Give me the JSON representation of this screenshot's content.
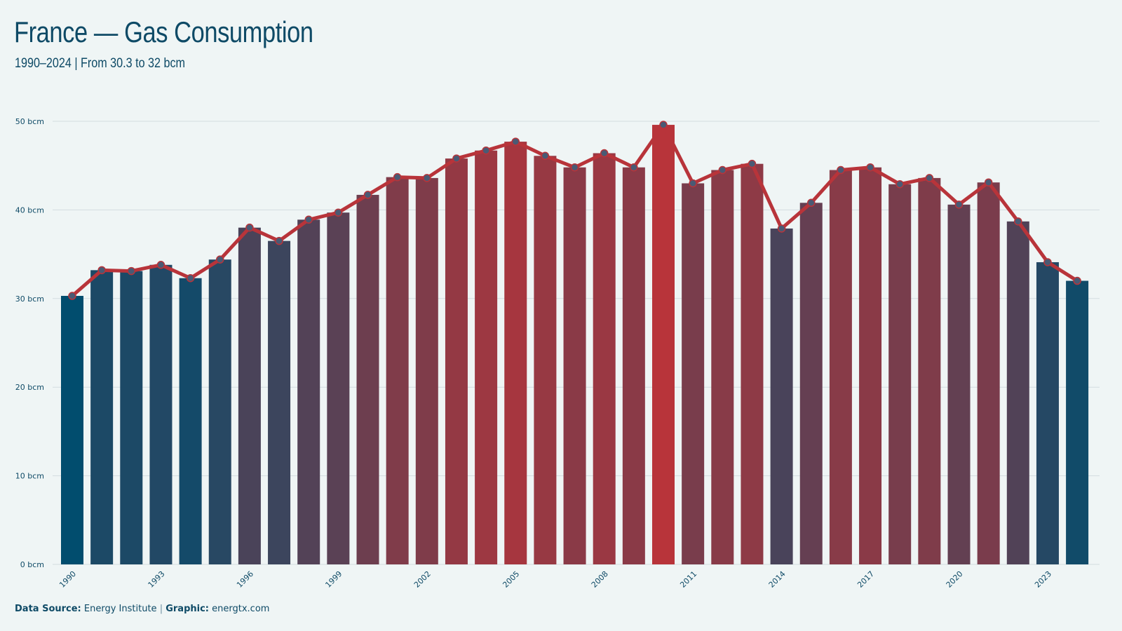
{
  "title": "France — Gas Consumption",
  "subtitle": "1990–2024 | From 30.3 to 32 bcm",
  "footer": {
    "source_label": "Data Source:",
    "source_value": "Energy Institute",
    "separator": "|",
    "graphic_label": "Graphic:",
    "graphic_value": "energtx.com"
  },
  "colors": {
    "low": "#014d6e",
    "high": "#b8343a",
    "line": "#b8343a",
    "marker": "#4a5a74",
    "grid": "#d3dde0",
    "text": "#0e4a66",
    "background": "#eff5f5"
  },
  "chart_data": {
    "type": "bar",
    "unit": "bcm",
    "x": [
      1990,
      1991,
      1992,
      1993,
      1994,
      1995,
      1996,
      1997,
      1998,
      1999,
      2000,
      2001,
      2002,
      2003,
      2004,
      2005,
      2006,
      2007,
      2008,
      2009,
      2010,
      2011,
      2012,
      2013,
      2014,
      2015,
      2016,
      2017,
      2018,
      2019,
      2020,
      2021,
      2022,
      2023,
      2024
    ],
    "values": [
      30.3,
      33.2,
      33.1,
      33.8,
      32.3,
      34.4,
      38.0,
      36.5,
      38.9,
      39.7,
      41.7,
      43.7,
      43.6,
      45.8,
      46.7,
      47.7,
      46.1,
      44.8,
      46.4,
      44.8,
      49.6,
      43.0,
      44.5,
      45.2,
      37.9,
      40.8,
      44.5,
      44.8,
      42.9,
      43.6,
      40.6,
      43.1,
      38.7,
      34.1,
      32.0
    ],
    "overlay_line": true,
    "ylim": [
      0,
      50
    ],
    "yticks": [
      0,
      10,
      20,
      30,
      40,
      50
    ],
    "ytick_labels": [
      "0 bcm",
      "10 bcm",
      "20 bcm",
      "30 bcm",
      "40 bcm",
      "50 bcm"
    ],
    "xtick_labels": [
      "1990",
      "1993",
      "1996",
      "1999",
      "2002",
      "2005",
      "2008",
      "2011",
      "2014",
      "2017",
      "2020",
      "2023"
    ],
    "grid": true,
    "legend": "none"
  }
}
